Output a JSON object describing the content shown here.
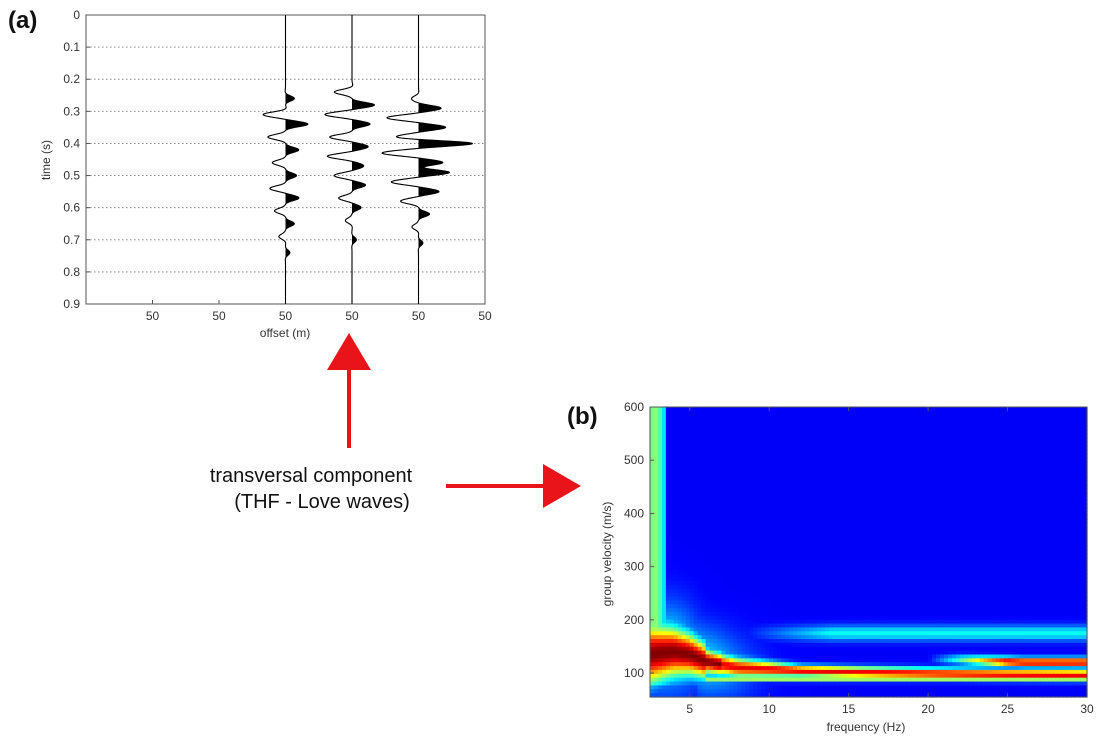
{
  "panels": {
    "a": "(a)",
    "b": "(b)"
  },
  "annotation": {
    "line1": "transversal component",
    "line2": "(THF - Love waves)"
  },
  "arrow_color": "#e8141a",
  "chart_data": [
    {
      "type": "line",
      "panel": "(a)",
      "description_kind": "seismogram traces",
      "xlabel": "offset (m)",
      "ylabel": "time (s)",
      "x_tick_labels": [
        "50",
        "50",
        "50",
        "50",
        "50",
        "50"
      ],
      "yticks": [
        0,
        0.1,
        0.2,
        0.3,
        0.4,
        0.5,
        0.6,
        0.7,
        0.8,
        0.9
      ],
      "ylim": [
        0,
        0.9
      ],
      "y_inverted": true,
      "grid": "dotted horizontal",
      "series": [
        {
          "baseline_tick_index": 2,
          "wavelets": [
            [
              0.26,
              0.4
            ],
            [
              0.31,
              -1
            ],
            [
              0.34,
              1
            ],
            [
              0.38,
              -0.8
            ],
            [
              0.42,
              0.6
            ],
            [
              0.46,
              -0.6
            ],
            [
              0.5,
              0.5
            ],
            [
              0.54,
              -0.7
            ],
            [
              0.57,
              0.6
            ],
            [
              0.61,
              -0.5
            ],
            [
              0.65,
              0.4
            ],
            [
              0.69,
              -0.3
            ],
            [
              0.74,
              0.2
            ]
          ]
        },
        {
          "baseline_tick_index": 3,
          "wavelets": [
            [
              0.24,
              -0.8
            ],
            [
              0.28,
              1
            ],
            [
              0.31,
              -1.2
            ],
            [
              0.34,
              0.8
            ],
            [
              0.38,
              -1
            ],
            [
              0.41,
              0.7
            ],
            [
              0.44,
              -1.1
            ],
            [
              0.47,
              0.5
            ],
            [
              0.5,
              -0.8
            ],
            [
              0.53,
              0.6
            ],
            [
              0.57,
              -0.6
            ],
            [
              0.6,
              0.4
            ],
            [
              0.64,
              -0.3
            ],
            [
              0.7,
              0.2
            ]
          ]
        },
        {
          "baseline_tick_index": 4,
          "wavelets": [
            [
              0.26,
              -0.3
            ],
            [
              0.29,
              1
            ],
            [
              0.32,
              -1.4
            ],
            [
              0.35,
              1.2
            ],
            [
              0.38,
              -0.9
            ],
            [
              0.4,
              2.4
            ],
            [
              0.43,
              -1.6
            ],
            [
              0.46,
              1.1
            ],
            [
              0.49,
              1.4
            ],
            [
              0.52,
              -1.2
            ],
            [
              0.55,
              0.9
            ],
            [
              0.58,
              -0.8
            ],
            [
              0.62,
              0.5
            ],
            [
              0.66,
              -0.3
            ],
            [
              0.71,
              0.2
            ]
          ]
        }
      ]
    },
    {
      "type": "heatmap",
      "panel": "(b)",
      "xlabel": "frequency (Hz)",
      "ylabel": "group velocity (m/s)",
      "xlim": [
        2.5,
        30
      ],
      "ylim": [
        55,
        600
      ],
      "xticks": [
        5,
        10,
        15,
        20,
        25,
        30
      ],
      "yticks": [
        100,
        200,
        300,
        400,
        500,
        600
      ],
      "colormap": "jet",
      "features": [
        {
          "name": "fundamental-mode ridge",
          "points": [
            [
              2.5,
              135
            ],
            [
              4,
              140
            ],
            [
              5,
              135
            ],
            [
              6,
              122
            ],
            [
              8,
              110
            ],
            [
              12,
              104
            ],
            [
              16,
              101
            ],
            [
              20,
              99
            ],
            [
              25,
              97
            ],
            [
              30,
              96
            ]
          ]
        },
        {
          "name": "low-velocity band",
          "velocity": 90
        },
        {
          "name": "high-frequency branch",
          "points": [
            [
              22,
              125
            ],
            [
              26,
              120
            ],
            [
              30,
              120
            ]
          ]
        },
        {
          "name": "weak band",
          "velocity": 175,
          "from_frequency": 8
        }
      ]
    }
  ]
}
